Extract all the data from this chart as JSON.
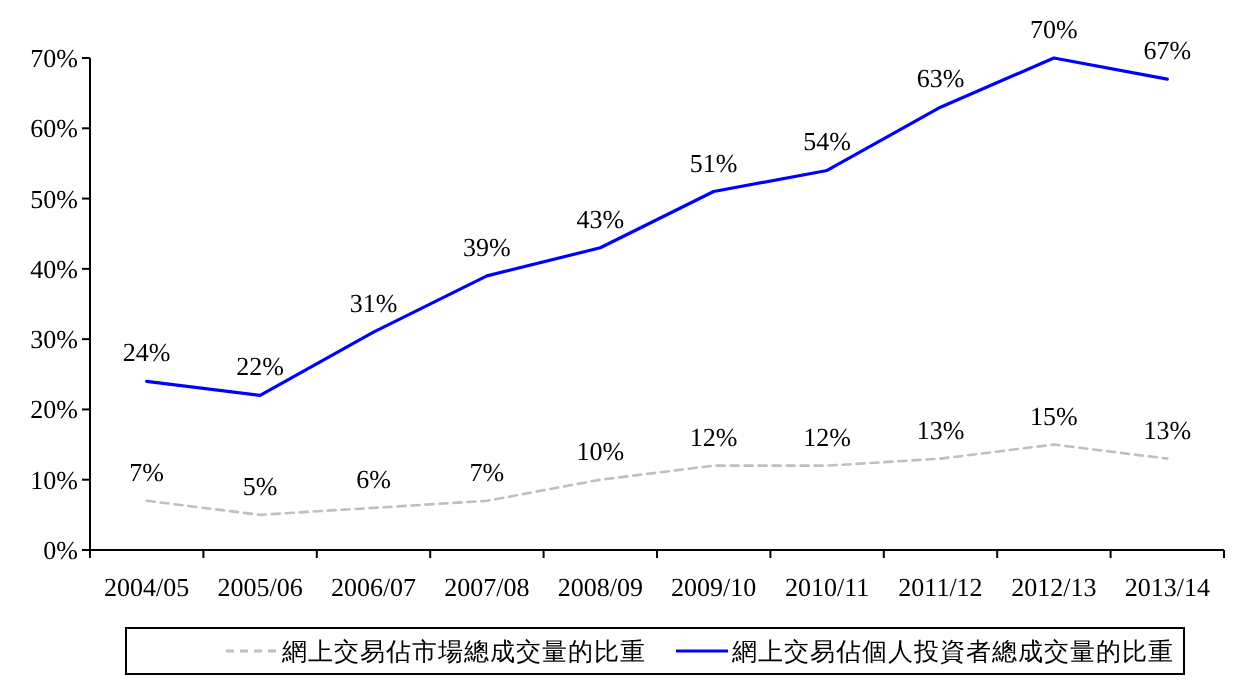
{
  "chart_data": {
    "type": "line",
    "categories": [
      "2004/05",
      "2005/06",
      "2006/07",
      "2007/08",
      "2008/09",
      "2009/10",
      "2010/11",
      "2011/12",
      "2012/13",
      "2013/14"
    ],
    "ylim": [
      0,
      70
    ],
    "yticks": [
      {
        "value": 0,
        "label": "0%"
      },
      {
        "value": 10,
        "label": "10%"
      },
      {
        "value": 20,
        "label": "20%"
      },
      {
        "value": 30,
        "label": "30%"
      },
      {
        "value": 40,
        "label": "40%"
      },
      {
        "value": 50,
        "label": "50%"
      },
      {
        "value": 60,
        "label": "60%"
      },
      {
        "value": 70,
        "label": "70%"
      }
    ],
    "series": [
      {
        "name": "網上交易佔市場總成交量的比重",
        "color": "#bfbfbf",
        "line_style": "dashed",
        "values": [
          7,
          5,
          6,
          7,
          10,
          12,
          12,
          13,
          15,
          13
        ],
        "value_labels": [
          "7%",
          "5%",
          "6%",
          "7%",
          "10%",
          "12%",
          "12%",
          "13%",
          "15%",
          "13%"
        ]
      },
      {
        "name": "網上交易佔個人投資者總成交量的比重",
        "color": "#0000ff",
        "line_style": "solid",
        "values": [
          24,
          22,
          31,
          39,
          43,
          51,
          54,
          63,
          70,
          67
        ],
        "value_labels": [
          "24%",
          "22%",
          "31%",
          "39%",
          "43%",
          "51%",
          "54%",
          "63%",
          "70%",
          "67%"
        ]
      }
    ],
    "grid": false,
    "legend": "bottom",
    "marker": "none"
  }
}
